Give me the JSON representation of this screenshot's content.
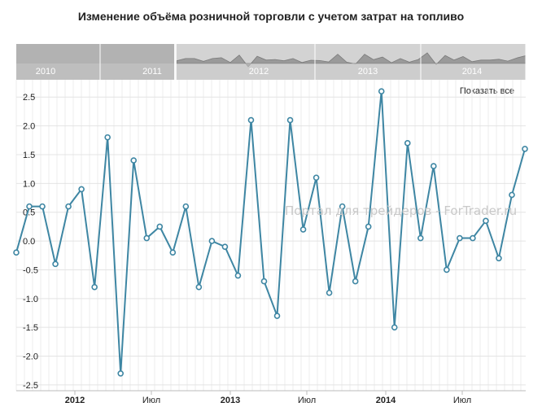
{
  "chart_data": {
    "type": "line",
    "title": "Изменение объёма розничной торговли с учетом затрат на топливо",
    "xlabel": "",
    "ylabel": "",
    "ylim": [
      -2.6,
      2.8
    ],
    "y_ticks": [
      -2.5,
      -2.0,
      -1.5,
      -1.0,
      -0.5,
      0.0,
      0.5,
      1.0,
      1.5,
      2.0,
      2.5
    ],
    "y_tick_labels": [
      "-2.5",
      "-2.0",
      "-1.5",
      "-1.0",
      "-0.5",
      "0.0",
      "0.5",
      "1.0",
      "1.5",
      "2.0",
      "2.5"
    ],
    "x_tick_labels": [
      "2012",
      "Июл",
      "2013",
      "Июл",
      "2014",
      "Июл"
    ],
    "grid": true,
    "series": [
      {
        "color": "#3e86a3",
        "values": [
          -0.2,
          0.6,
          0.6,
          -0.4,
          0.6,
          0.9,
          -0.8,
          1.8,
          -2.3,
          1.4,
          0.05,
          0.25,
          -0.2,
          0.6,
          -0.8,
          0.0,
          -0.1,
          -0.6,
          2.1,
          -0.7,
          -1.3,
          2.1,
          0.2,
          1.1,
          -0.9,
          0.6,
          -0.7,
          0.25,
          2.6,
          -1.5,
          1.7,
          0.05,
          1.3,
          -0.5,
          0.05,
          0.05,
          0.35,
          -0.3,
          0.8,
          1.6
        ]
      }
    ],
    "navigator": {
      "year_labels": [
        "2010",
        "2011",
        "2012",
        "2013",
        "2014"
      ]
    }
  },
  "controls": {
    "show_all_label": "Показать все"
  },
  "watermark": "Портал для трейдеров - ForTrader.ru"
}
